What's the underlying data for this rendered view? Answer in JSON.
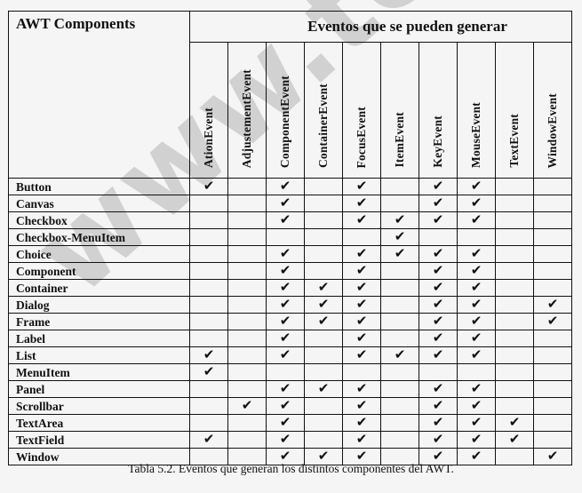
{
  "table": {
    "corner_header": "AWT Components",
    "events_header": "Eventos que se pueden generar",
    "events": [
      "AtionEvent",
      "AdjustementEvent",
      "ComponentEvent",
      "ContainerEvent",
      "FocusEvent",
      "ItemEvent",
      "KeyEvent",
      "MouseEvent",
      "TextEvent",
      "WindowEvent"
    ],
    "check_symbol": "✔",
    "rows": [
      {
        "name": "Button",
        "checks": [
          1,
          0,
          1,
          0,
          1,
          0,
          1,
          1,
          0,
          0
        ]
      },
      {
        "name": "Canvas",
        "checks": [
          0,
          0,
          1,
          0,
          1,
          0,
          1,
          1,
          0,
          0
        ]
      },
      {
        "name": "Checkbox",
        "checks": [
          0,
          0,
          1,
          0,
          1,
          1,
          1,
          1,
          0,
          0
        ]
      },
      {
        "name": "Checkbox-MenuItem",
        "checks": [
          0,
          0,
          0,
          0,
          0,
          1,
          0,
          0,
          0,
          0
        ]
      },
      {
        "name": "Choice",
        "checks": [
          0,
          0,
          1,
          0,
          1,
          1,
          1,
          1,
          0,
          0
        ]
      },
      {
        "name": "Component",
        "checks": [
          0,
          0,
          1,
          0,
          1,
          0,
          1,
          1,
          0,
          0
        ]
      },
      {
        "name": "Container",
        "checks": [
          0,
          0,
          1,
          1,
          1,
          0,
          1,
          1,
          0,
          0
        ]
      },
      {
        "name": "Dialog",
        "checks": [
          0,
          0,
          1,
          1,
          1,
          0,
          1,
          1,
          0,
          1
        ]
      },
      {
        "name": "Frame",
        "checks": [
          0,
          0,
          1,
          1,
          1,
          0,
          1,
          1,
          0,
          1
        ]
      },
      {
        "name": "Label",
        "checks": [
          0,
          0,
          1,
          0,
          1,
          0,
          1,
          1,
          0,
          0
        ]
      },
      {
        "name": "List",
        "checks": [
          1,
          0,
          1,
          0,
          1,
          1,
          1,
          1,
          0,
          0
        ]
      },
      {
        "name": "MenuItem",
        "checks": [
          1,
          0,
          0,
          0,
          0,
          0,
          0,
          0,
          0,
          0
        ]
      },
      {
        "name": "Panel",
        "checks": [
          0,
          0,
          1,
          1,
          1,
          0,
          1,
          1,
          0,
          0
        ]
      },
      {
        "name": "Scrollbar",
        "checks": [
          0,
          1,
          1,
          0,
          1,
          0,
          1,
          1,
          0,
          0
        ]
      },
      {
        "name": "TextArea",
        "checks": [
          0,
          0,
          1,
          0,
          1,
          0,
          1,
          1,
          1,
          0
        ]
      },
      {
        "name": "TextField",
        "checks": [
          1,
          0,
          1,
          0,
          1,
          0,
          1,
          1,
          1,
          0
        ]
      },
      {
        "name": "Window",
        "checks": [
          0,
          0,
          1,
          1,
          1,
          0,
          1,
          1,
          0,
          1
        ]
      }
    ]
  },
  "caption": "Tabla 5.2. Eventos que generan los distintos componentes del AWT.",
  "watermark": "www.tecnun.es"
}
